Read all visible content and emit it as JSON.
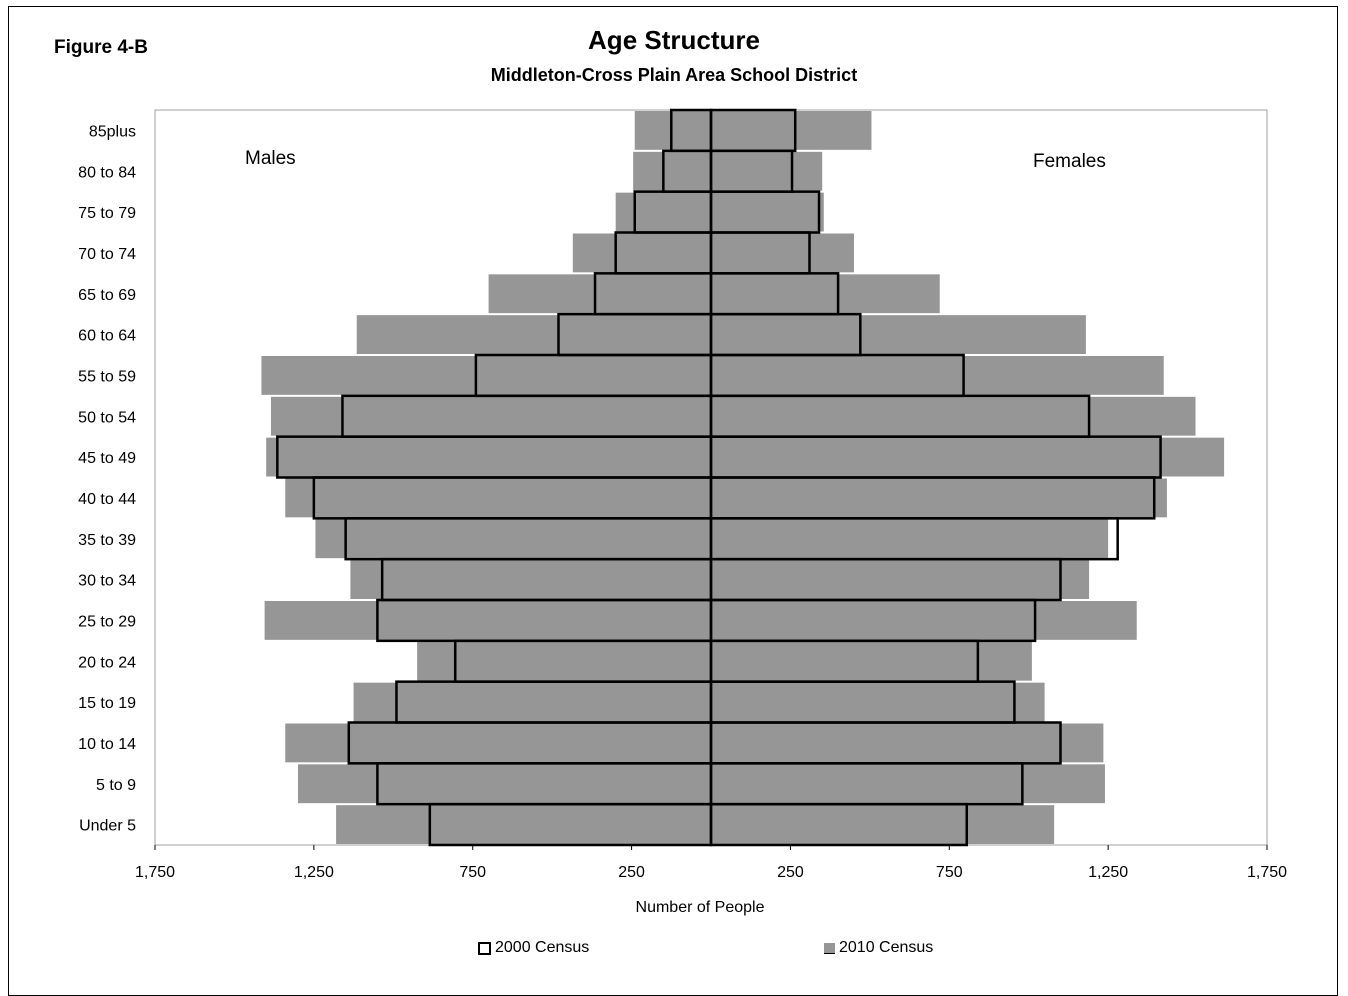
{
  "figure_label": "Figure 4-B",
  "chart_data": {
    "type": "bar",
    "orientation": "horizontal",
    "subtype": "population-pyramid",
    "title": "Age Structure",
    "subtitle": "Middleton-Cross Plain Area School District",
    "xlabel": "Number of People",
    "left_side_label": "Males",
    "right_side_label": "Females",
    "xlim": [
      -1750,
      1750
    ],
    "x_ticks": [
      -1750,
      -1250,
      -750,
      -250,
      250,
      750,
      1250,
      1750
    ],
    "x_tick_labels": [
      "1,750",
      "1,250",
      "750",
      "250",
      "250",
      "750",
      "1,250",
      "1,750"
    ],
    "categories": [
      "Under 5",
      "5 to 9",
      "10 to 14",
      "15 to 19",
      "20 to 24",
      "25 to 29",
      "30 to 34",
      "35 to 39",
      "40 to 44",
      "45 to 49",
      "50 to 54",
      "55 to 59",
      "60 to 64",
      "65 to 69",
      "70 to 74",
      "75 to 79",
      "80 to 84",
      "85plus"
    ],
    "series": [
      {
        "name": "2010 Census",
        "style": "filled-gray",
        "male": [
          1180,
          1300,
          1340,
          1125,
          925,
          1405,
          1135,
          1245,
          1340,
          1400,
          1385,
          1415,
          1115,
          700,
          435,
          300,
          245,
          240
        ],
        "female": [
          1080,
          1240,
          1235,
          1050,
          1010,
          1340,
          1190,
          1250,
          1435,
          1615,
          1525,
          1425,
          1180,
          720,
          450,
          355,
          350,
          505
        ]
      },
      {
        "name": "2000 Census",
        "style": "black-outline",
        "male": [
          885,
          1050,
          1140,
          990,
          805,
          1050,
          1035,
          1150,
          1250,
          1365,
          1160,
          740,
          480,
          365,
          300,
          240,
          150,
          125
        ],
        "female": [
          805,
          980,
          1100,
          955,
          840,
          1020,
          1100,
          1280,
          1395,
          1415,
          1190,
          795,
          470,
          400,
          310,
          340,
          255,
          265
        ]
      }
    ],
    "legend": [
      {
        "label": "2000 Census",
        "swatch": "outline"
      },
      {
        "label": "2010 Census",
        "swatch": "gray"
      }
    ],
    "legend_position": "bottom",
    "grid": false,
    "colors": {
      "fill_2010": "#969696",
      "outline_2000": "#000000"
    }
  }
}
